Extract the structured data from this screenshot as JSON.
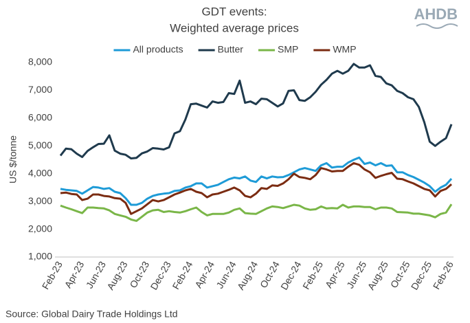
{
  "chart_data": {
    "type": "line",
    "title": "GDT events:",
    "subtitle": "Weighted average prices",
    "y_label": "US $/tonne",
    "categories": [
      "Feb-23",
      null,
      null,
      null,
      "Apr-23",
      null,
      null,
      null,
      "Jun-23",
      null,
      null,
      null,
      "Aug-23",
      null,
      null,
      null,
      "Oct-23",
      null,
      null,
      null,
      "Dec-23",
      null,
      null,
      null,
      "Feb-24",
      null,
      null,
      null,
      "Apr-24",
      null,
      null,
      null,
      "Jun-24",
      null,
      null,
      null,
      "Aug-24",
      null,
      null,
      null,
      "Oct-24",
      null,
      null,
      null,
      "Dec-24",
      null,
      null,
      null,
      "Feb-25",
      null,
      null,
      null,
      "Apr-25",
      null,
      null,
      null,
      "Jun-25",
      null,
      null,
      null,
      "Aug-25",
      null,
      null,
      null,
      "Oct-25",
      null,
      null,
      null,
      "Dec-25",
      null,
      null,
      null,
      "Feb-26"
    ],
    "series": [
      {
        "name": "All products",
        "color": "#1e9bd7",
        "values": [
          3450,
          3420,
          3400,
          3380,
          3280,
          3400,
          3520,
          3500,
          3450,
          3480,
          3350,
          3300,
          3120,
          2880,
          2880,
          2950,
          3100,
          3200,
          3250,
          3280,
          3300,
          3380,
          3400,
          3500,
          3550,
          3650,
          3650,
          3500,
          3550,
          3600,
          3700,
          3800,
          3860,
          3830,
          3900,
          3750,
          3700,
          3900,
          3830,
          3900,
          3870,
          3880,
          3950,
          4050,
          4150,
          4200,
          4150,
          4100,
          4300,
          4380,
          4220,
          4250,
          4250,
          4400,
          4500,
          4580,
          4350,
          4400,
          4300,
          4380,
          4280,
          4300,
          4050,
          4050,
          3950,
          3880,
          3780,
          3680,
          3550,
          3350,
          3500,
          3600,
          3820
        ]
      },
      {
        "name": "Butter",
        "color": "#1f3a4d",
        "values": [
          4650,
          4900,
          4880,
          4720,
          4600,
          4820,
          4950,
          5070,
          5080,
          5380,
          4830,
          4720,
          4680,
          4550,
          4570,
          4730,
          4800,
          4920,
          4900,
          4870,
          4950,
          5450,
          5530,
          5950,
          6500,
          6520,
          6450,
          6380,
          6600,
          6550,
          6580,
          6900,
          6870,
          7350,
          6550,
          6600,
          6500,
          6700,
          6680,
          6550,
          6420,
          6530,
          6980,
          7000,
          6650,
          6620,
          6750,
          6950,
          7200,
          7380,
          7600,
          7700,
          7600,
          7700,
          7950,
          7820,
          7820,
          7900,
          7520,
          7480,
          7250,
          7180,
          6980,
          6900,
          6750,
          6680,
          6400,
          5850,
          5150,
          5000,
          5150,
          5280,
          5780
        ]
      },
      {
        "name": "SMP",
        "color": "#7ab648",
        "values": [
          2850,
          2780,
          2720,
          2650,
          2580,
          2780,
          2780,
          2760,
          2750,
          2680,
          2550,
          2500,
          2450,
          2350,
          2300,
          2450,
          2600,
          2680,
          2700,
          2620,
          2650,
          2620,
          2600,
          2650,
          2720,
          2780,
          2620,
          2500,
          2550,
          2550,
          2550,
          2600,
          2700,
          2750,
          2580,
          2560,
          2550,
          2650,
          2750,
          2820,
          2800,
          2760,
          2820,
          2880,
          2850,
          2750,
          2700,
          2720,
          2820,
          2750,
          2760,
          2750,
          2880,
          2780,
          2820,
          2820,
          2800,
          2800,
          2720,
          2780,
          2780,
          2750,
          2620,
          2610,
          2600,
          2560,
          2560,
          2530,
          2500,
          2430,
          2550,
          2600,
          2900
        ]
      },
      {
        "name": "WMP",
        "color": "#7b2c12",
        "values": [
          3300,
          3320,
          3270,
          3250,
          3050,
          3100,
          3250,
          3250,
          3200,
          3180,
          3120,
          3100,
          2950,
          2550,
          2650,
          2750,
          2900,
          3050,
          3000,
          3050,
          3150,
          3250,
          3320,
          3400,
          3450,
          3350,
          3300,
          3150,
          3250,
          3280,
          3350,
          3420,
          3500,
          3400,
          3200,
          3150,
          3280,
          3480,
          3450,
          3580,
          3560,
          3650,
          3800,
          4000,
          3880,
          3850,
          3800,
          3950,
          4200,
          4150,
          4080,
          4100,
          4100,
          4250,
          4380,
          4320,
          4150,
          4050,
          3850,
          3920,
          3980,
          4030,
          3820,
          3800,
          3720,
          3650,
          3550,
          3450,
          3400,
          3180,
          3380,
          3450,
          3620
        ]
      }
    ],
    "ylim": [
      1000,
      8000
    ],
    "yticks": [
      {
        "value": 1000,
        "label": "1,000"
      },
      {
        "value": 2000,
        "label": "2,000"
      },
      {
        "value": 3000,
        "label": "3,000"
      },
      {
        "value": 4000,
        "label": "4,000"
      },
      {
        "value": 5000,
        "label": "5,000"
      },
      {
        "value": 6000,
        "label": "6,000"
      },
      {
        "value": 7000,
        "label": "7,000"
      },
      {
        "value": 8000,
        "label": "8,000"
      }
    ],
    "grid": false,
    "legend": "top"
  },
  "source": "Source: Global Dairy Trade Holdings Ltd",
  "logo": "AHDB"
}
